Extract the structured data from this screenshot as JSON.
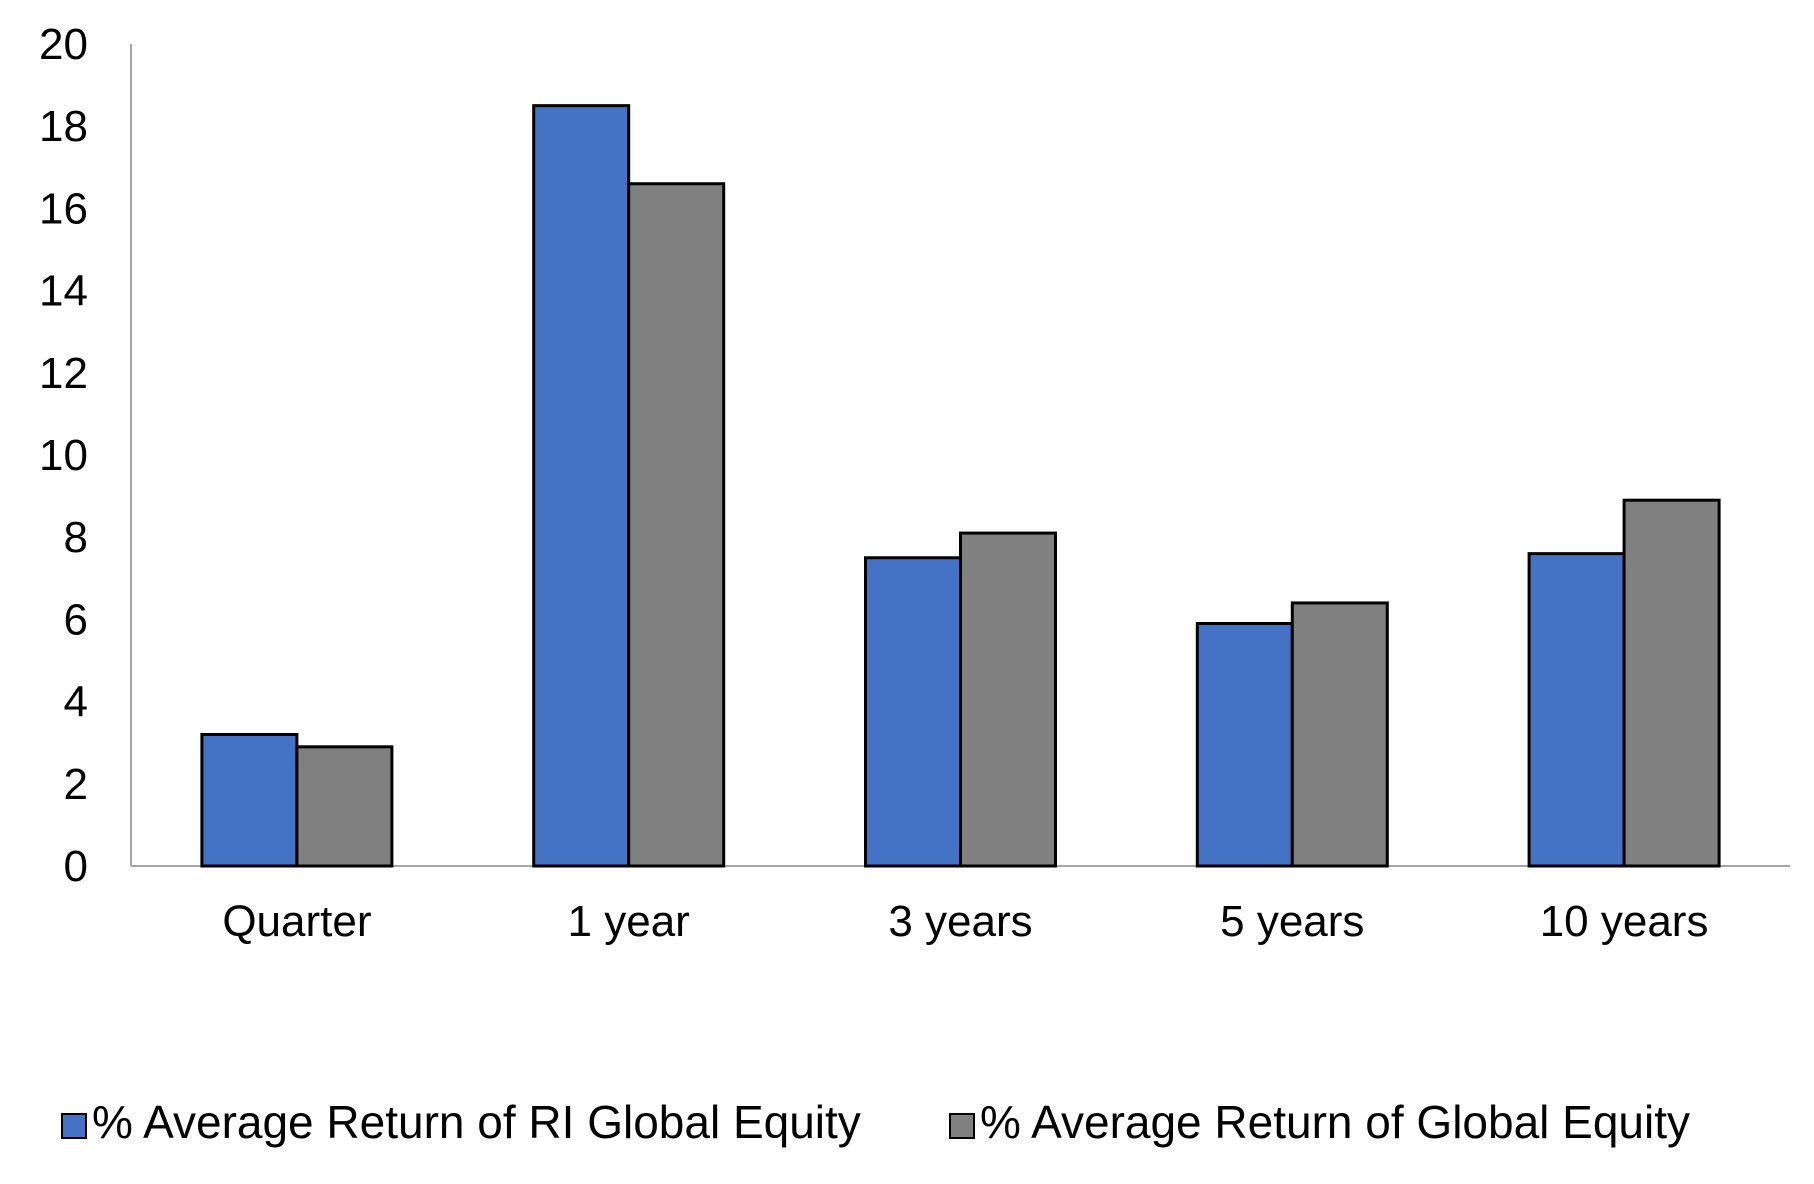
{
  "chart_data": {
    "type": "bar",
    "title": "",
    "xlabel": "",
    "ylabel": "",
    "categories": [
      "Quarter",
      "1 year",
      "3 years",
      "5 years",
      "10 years"
    ],
    "series": [
      {
        "name": "% Average Return of RI Global Equity",
        "color": "#4472C4",
        "values": [
          3.2,
          18.5,
          7.5,
          5.9,
          7.6
        ]
      },
      {
        "name": "% Average Return of Global Equity",
        "color": "#808080",
        "values": [
          2.9,
          16.6,
          8.1,
          6.4,
          8.9
        ]
      }
    ],
    "ylim": [
      0,
      20
    ],
    "yticks": [
      "0",
      "2",
      "4",
      "6",
      "8",
      "10",
      "12",
      "14",
      "16",
      "18",
      "20"
    ],
    "grid": false,
    "legend_position": "bottom"
  }
}
